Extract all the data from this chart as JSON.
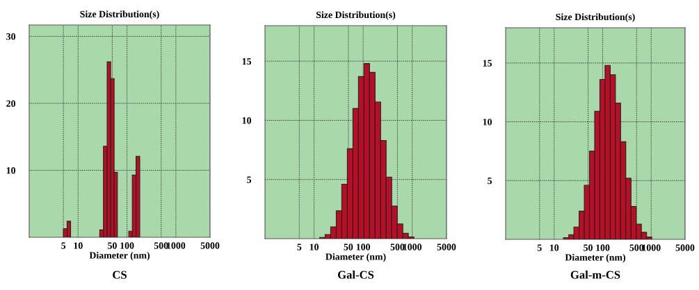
{
  "chart_data": [
    {
      "type": "histogram",
      "title": "Size Distribution(s)",
      "xlabel": "Diameter (nm)",
      "annotations": [
        "CS"
      ],
      "log": "x",
      "grid": true,
      "color": "#b80e26",
      "bins": [
        5.0,
        5.96,
        7.03,
        27.7,
        33.0,
        39.3,
        46.3,
        54.6,
        63.7,
        108.9,
        128.5,
        153.1,
        182.4
      ],
      "values": [
        1.3,
        2.4,
        0,
        1.1,
        13.6,
        26.2,
        23.7,
        9.7,
        0,
        0.9,
        9.3,
        12.1
      ],
      "xlim": [
        1,
        5000
      ],
      "xticks": [
        5,
        10,
        50,
        100,
        500,
        1000,
        5000
      ],
      "ylim": [
        0,
        31.7
      ],
      "yticks": [
        10,
        20,
        30
      ]
    },
    {
      "type": "histogram",
      "title": "Size Distribution(s)",
      "xlabel": "Diameter (nm)",
      "annotations": [
        "Gal-CS"
      ],
      "log": "x",
      "grid": true,
      "color": "#b80e26",
      "bins": [
        10,
        13.0,
        16.8,
        21.8,
        28.3,
        36.7,
        47.6,
        61.8,
        80.2,
        104.0,
        134.9,
        175.0,
        227.0,
        294.4,
        381.9,
        495.5,
        642.7,
        833.7,
        1081,
        1403
      ],
      "values": [
        null,
        0.1,
        0.35,
        1.0,
        2.35,
        4.6,
        7.6,
        11.0,
        13.7,
        14.8,
        14.05,
        11.55,
        8.3,
        5.2,
        2.75,
        1.25,
        0.45,
        0.15,
        null
      ],
      "xlim": [
        1,
        5000
      ],
      "xticks": [
        5,
        10,
        50,
        100,
        500,
        1000,
        5000
      ],
      "ylim": [
        0,
        18
      ],
      "yticks": [
        5,
        10,
        15
      ]
    },
    {
      "type": "histogram",
      "title": "Size Distribution(s)",
      "xlabel": "Diameter (nm)",
      "annotations": [
        "Gal-m-CS"
      ],
      "log": "x",
      "grid": true,
      "color": "#b80e26",
      "bins": [
        12.2,
        15.6,
        20.0,
        25.5,
        32.7,
        41.8,
        53.5,
        68.4,
        87.5,
        111.9,
        143.2,
        183.2,
        234.4,
        299.9,
        383.7,
        490.9,
        628.1,
        803.5,
        1028,
        1315
      ],
      "values": [
        null,
        0.15,
        0.4,
        1.05,
        2.4,
        4.6,
        7.5,
        10.9,
        13.6,
        14.8,
        14.0,
        11.6,
        8.3,
        5.2,
        2.8,
        1.3,
        0.6,
        0.2,
        null
      ],
      "xlim": [
        1,
        5000
      ],
      "xticks": [
        5,
        10,
        50,
        100,
        500,
        1000,
        5000
      ],
      "ylim": [
        0,
        18
      ],
      "yticks": [
        5,
        10,
        15
      ]
    }
  ]
}
